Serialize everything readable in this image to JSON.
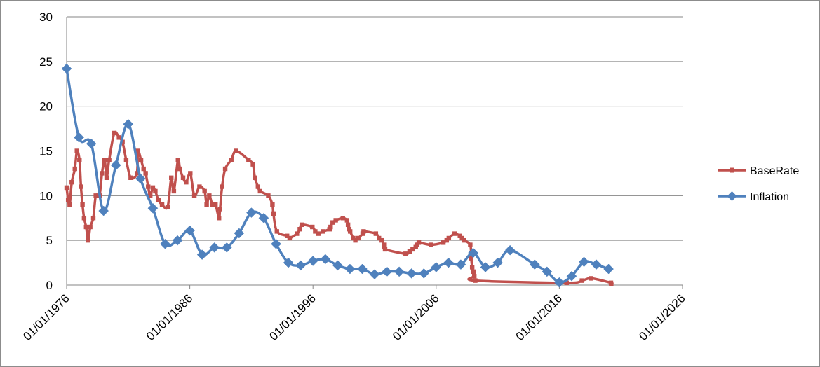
{
  "chart_data": {
    "type": "line",
    "title": "",
    "xlabel": "",
    "ylabel": "",
    "x_axis_type": "date",
    "xlim": [
      "1976-01-01",
      "2026-01-01"
    ],
    "ylim": [
      0,
      30
    ],
    "y_ticks": [
      0,
      5,
      10,
      15,
      20,
      25,
      30
    ],
    "x_ticks": [
      "01/01/1976",
      "01/01/1986",
      "01/01/1996",
      "01/01/2006",
      "01/01/2016",
      "01/01/2026"
    ],
    "grid": "horizontal",
    "legend_position": "right",
    "series": [
      {
        "name": "BaseRate",
        "color": "#c0504d",
        "marker": "square",
        "points": [
          [
            "1976-01-01",
            10.9
          ],
          [
            "1976-02-15",
            9.5
          ],
          [
            "1976-04-01",
            9.0
          ],
          [
            "1976-06-01",
            11.5
          ],
          [
            "1976-09-01",
            13.0
          ],
          [
            "1976-11-01",
            15.0
          ],
          [
            "1977-01-15",
            14.0
          ],
          [
            "1977-03-01",
            11.0
          ],
          [
            "1977-04-15",
            9.0
          ],
          [
            "1977-06-01",
            7.5
          ],
          [
            "1977-08-01",
            6.5
          ],
          [
            "1977-10-01",
            5.0
          ],
          [
            "1977-12-01",
            6.5
          ],
          [
            "1978-03-01",
            7.5
          ],
          [
            "1978-05-15",
            10.0
          ],
          [
            "1978-09-01",
            10.0
          ],
          [
            "1978-11-15",
            12.5
          ],
          [
            "1979-02-01",
            14.0
          ],
          [
            "1979-04-01",
            12.0
          ],
          [
            "1979-06-15",
            14.0
          ],
          [
            "1979-11-15",
            17.0
          ],
          [
            "1980-04-01",
            16.5
          ],
          [
            "1980-07-15",
            16.0
          ],
          [
            "1980-11-01",
            14.0
          ],
          [
            "1981-03-15",
            12.0
          ],
          [
            "1981-09-15",
            12.5
          ],
          [
            "1981-10-15",
            15.0
          ],
          [
            "1982-01-15",
            14.0
          ],
          [
            "1982-04-01",
            13.0
          ],
          [
            "1982-06-01",
            12.5
          ],
          [
            "1982-08-15",
            11.0
          ],
          [
            "1982-10-15",
            10.0
          ],
          [
            "1983-01-01",
            10.9
          ],
          [
            "1983-03-15",
            10.5
          ],
          [
            "1983-06-15",
            9.5
          ],
          [
            "1983-10-01",
            9.0
          ],
          [
            "1984-03-15",
            8.75
          ],
          [
            "1984-07-01",
            12.0
          ],
          [
            "1984-09-15",
            10.5
          ],
          [
            "1985-01-15",
            14.0
          ],
          [
            "1985-03-15",
            13.0
          ],
          [
            "1985-06-15",
            12.0
          ],
          [
            "1985-09-15",
            11.5
          ],
          [
            "1986-01-15",
            12.5
          ],
          [
            "1986-05-15",
            10.0
          ],
          [
            "1986-10-15",
            11.0
          ],
          [
            "1987-03-15",
            10.5
          ],
          [
            "1987-05-15",
            9.0
          ],
          [
            "1987-08-01",
            10.0
          ],
          [
            "1987-11-01",
            9.0
          ],
          [
            "1988-02-01",
            9.0
          ],
          [
            "1988-05-15",
            7.5
          ],
          [
            "1988-06-15",
            8.5
          ],
          [
            "1988-08-15",
            11.0
          ],
          [
            "1988-11-15",
            13.0
          ],
          [
            "1989-05-15",
            14.0
          ],
          [
            "1989-10-05",
            15.0
          ],
          [
            "1990-10-08",
            14.0
          ],
          [
            "1991-02-15",
            13.5
          ],
          [
            "1991-04-15",
            12.0
          ],
          [
            "1991-07-15",
            11.0
          ],
          [
            "1991-09-15",
            10.5
          ],
          [
            "1992-05-15",
            10.0
          ],
          [
            "1992-09-16",
            9.0
          ],
          [
            "1992-10-15",
            8.0
          ],
          [
            "1993-01-26",
            6.0
          ],
          [
            "1993-11-23",
            5.5
          ],
          [
            "1994-02-08",
            5.25
          ],
          [
            "1994-09-12",
            5.75
          ],
          [
            "1994-12-07",
            6.25
          ],
          [
            "1995-02-02",
            6.75
          ],
          [
            "1995-12-13",
            6.5
          ],
          [
            "1996-03-08",
            6.0
          ],
          [
            "1996-06-06",
            5.75
          ],
          [
            "1996-10-30",
            6.0
          ],
          [
            "1997-05-06",
            6.25
          ],
          [
            "1997-06-06",
            6.5
          ],
          [
            "1997-08-07",
            7.0
          ],
          [
            "1997-11-06",
            7.25
          ],
          [
            "1998-06-04",
            7.5
          ],
          [
            "1998-10-08",
            7.25
          ],
          [
            "1998-11-05",
            6.75
          ],
          [
            "1998-12-10",
            6.25
          ],
          [
            "1999-01-07",
            6.0
          ],
          [
            "1999-04-08",
            5.25
          ],
          [
            "1999-06-10",
            5.0
          ],
          [
            "1999-09-08",
            5.25
          ],
          [
            "2000-01-13",
            5.75
          ],
          [
            "2000-02-10",
            6.0
          ],
          [
            "2001-02-08",
            5.75
          ],
          [
            "2001-05-10",
            5.25
          ],
          [
            "2001-08-02",
            5.0
          ],
          [
            "2001-10-04",
            4.5
          ],
          [
            "2001-11-08",
            4.0
          ],
          [
            "2003-07-10",
            3.5
          ],
          [
            "2003-11-06",
            3.75
          ],
          [
            "2004-02-05",
            4.0
          ],
          [
            "2004-05-06",
            4.25
          ],
          [
            "2004-06-10",
            4.5
          ],
          [
            "2004-08-05",
            4.75
          ],
          [
            "2005-08-04",
            4.5
          ],
          [
            "2006-08-03",
            4.75
          ],
          [
            "2006-11-09",
            5.0
          ],
          [
            "2007-01-11",
            5.25
          ],
          [
            "2007-07-05",
            5.75
          ],
          [
            "2007-12-06",
            5.5
          ],
          [
            "2008-02-07",
            5.25
          ],
          [
            "2008-04-10",
            5.0
          ],
          [
            "2008-10-08",
            4.5
          ],
          [
            "2008-11-06",
            3.0
          ],
          [
            "2008-12-04",
            2.0
          ],
          [
            "2009-01-08",
            1.5
          ],
          [
            "2009-02-05",
            1.0
          ],
          [
            "2009-03-05",
            0.5
          ],
          [
            "2016-08-04",
            0.25
          ],
          [
            "2017-11-02",
            0.5
          ],
          [
            "2018-08-02",
            0.75
          ],
          [
            "2020-03-11",
            0.25
          ],
          [
            "2020-03-19",
            0.1
          ]
        ]
      },
      {
        "name": "Inflation",
        "color": "#4f81bd",
        "marker": "diamond",
        "points": [
          [
            "1976-01-01",
            24.2
          ],
          [
            "1977-01-01",
            16.5
          ],
          [
            "1978-01-01",
            15.8
          ],
          [
            "1979-01-01",
            8.3
          ],
          [
            "1980-01-01",
            13.4
          ],
          [
            "1981-01-01",
            18.0
          ],
          [
            "1982-01-01",
            11.9
          ],
          [
            "1983-01-01",
            8.6
          ],
          [
            "1984-01-01",
            4.6
          ],
          [
            "1985-01-01",
            5.0
          ],
          [
            "1986-01-01",
            6.1
          ],
          [
            "1987-01-01",
            3.4
          ],
          [
            "1988-01-01",
            4.2
          ],
          [
            "1989-01-01",
            4.2
          ],
          [
            "1990-01-01",
            5.8
          ],
          [
            "1991-01-01",
            8.1
          ],
          [
            "1992-01-01",
            7.5
          ],
          [
            "1993-01-01",
            4.6
          ],
          [
            "1994-01-01",
            2.5
          ],
          [
            "1995-01-01",
            2.2
          ],
          [
            "1996-01-01",
            2.7
          ],
          [
            "1997-01-01",
            2.9
          ],
          [
            "1998-01-01",
            2.2
          ],
          [
            "1999-01-01",
            1.8
          ],
          [
            "2000-01-01",
            1.8
          ],
          [
            "2001-01-01",
            1.2
          ],
          [
            "2002-01-01",
            1.5
          ],
          [
            "2003-01-01",
            1.5
          ],
          [
            "2004-01-01",
            1.3
          ],
          [
            "2005-01-01",
            1.3
          ],
          [
            "2006-01-01",
            2.0
          ],
          [
            "2007-01-01",
            2.5
          ],
          [
            "2008-01-01",
            2.3
          ],
          [
            "2009-01-01",
            3.6
          ],
          [
            "2010-01-01",
            2.0
          ],
          [
            "2011-01-01",
            2.5
          ],
          [
            "2012-01-01",
            3.9
          ],
          [
            "2014-01-01",
            2.3
          ],
          [
            "2015-01-01",
            1.5
          ],
          [
            "2016-01-01",
            0.3
          ],
          [
            "2017-01-01",
            1.0
          ],
          [
            "2018-01-01",
            2.6
          ],
          [
            "2019-01-01",
            2.3
          ],
          [
            "2020-01-01",
            1.8
          ]
        ]
      }
    ]
  }
}
